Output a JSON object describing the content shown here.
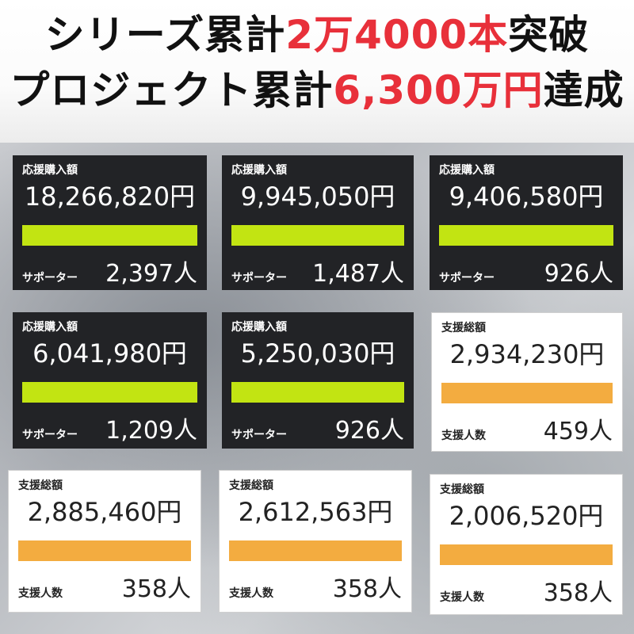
{
  "headline": {
    "line1_before": "シリーズ累計",
    "line1_highlight": "2万4000本",
    "line1_after": "突破",
    "line2_before": "プロジェクト累計",
    "line2_highlight": "6,300万円",
    "line2_after": "達成"
  },
  "colors": {
    "highlight": "#e8303a",
    "dark_card_bg": "#222326",
    "dark_bar": "#c2e412",
    "light_bar": "#f3ac40"
  },
  "cards": [
    {
      "theme": "dark",
      "label": "応援購入額",
      "amount": "18,266,820円",
      "sub_label": "サポーター",
      "count": "2,397人",
      "progress": 1.0
    },
    {
      "theme": "dark",
      "label": "応援購入額",
      "amount": "9,945,050円",
      "sub_label": "サポーター",
      "count": "1,487人",
      "progress": 1.0
    },
    {
      "theme": "dark",
      "label": "応援購入額",
      "amount": "9,406,580円",
      "sub_label": "サポーター",
      "count": "926人",
      "progress": 1.0
    },
    {
      "theme": "dark",
      "label": "応援購入額",
      "amount": "6,041,980円",
      "sub_label": "サポーター",
      "count": "1,209人",
      "progress": 1.0
    },
    {
      "theme": "dark",
      "label": "応援購入額",
      "amount": "5,250,030円",
      "sub_label": "サポーター",
      "count": "926人",
      "progress": 1.0
    },
    {
      "theme": "light",
      "label": "支援総額",
      "amount": "2,934,230円",
      "sub_label": "支援人数",
      "count": "459人",
      "progress": 1.0
    },
    {
      "theme": "light",
      "label": "支援総額",
      "amount": "2,885,460円",
      "sub_label": "支援人数",
      "count": "358人",
      "progress": 1.0
    },
    {
      "theme": "light",
      "label": "支援総額",
      "amount": "2,612,563円",
      "sub_label": "支援人数",
      "count": "358人",
      "progress": 1.0
    },
    {
      "theme": "light",
      "label": "支援総額",
      "amount": "2,006,520円",
      "sub_label": "支援人数",
      "count": "358人",
      "progress": 1.0
    }
  ]
}
